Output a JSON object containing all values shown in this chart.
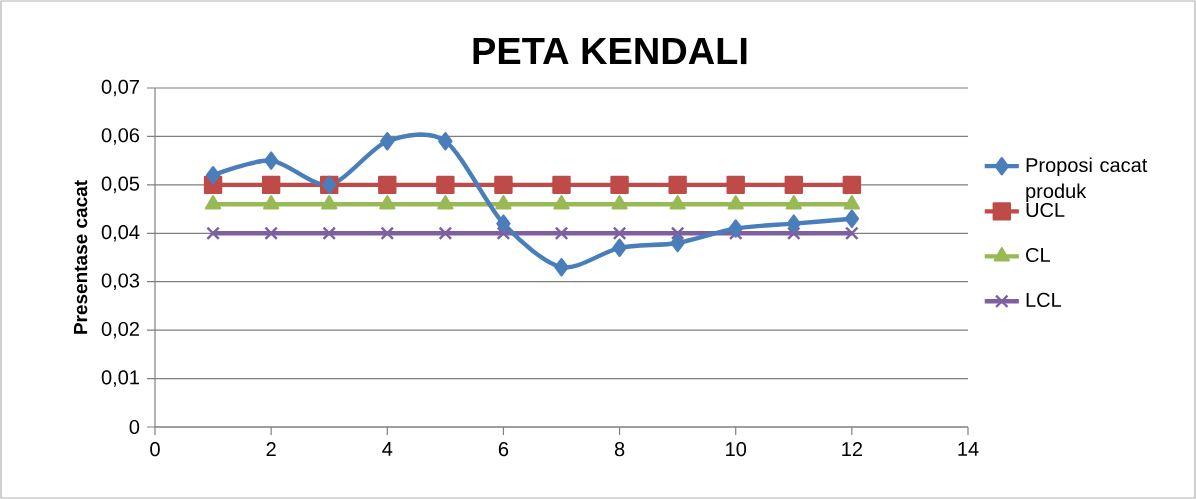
{
  "chart_data": {
    "type": "line",
    "title": "PETA KENDALI",
    "ylabel": "Presentase cacat",
    "x": [
      1,
      2,
      3,
      4,
      5,
      6,
      7,
      8,
      9,
      10,
      11,
      12
    ],
    "series": [
      {
        "name": "Proposi cacat produk",
        "color": "#4a7ebb",
        "marker": "diamond",
        "values": [
          0.052,
          0.055,
          0.05,
          0.059,
          0.059,
          0.042,
          0.033,
          0.037,
          0.038,
          0.041,
          0.042,
          0.043
        ]
      },
      {
        "name": "UCL",
        "color": "#be4b48",
        "marker": "square",
        "values": [
          0.05,
          0.05,
          0.05,
          0.05,
          0.05,
          0.05,
          0.05,
          0.05,
          0.05,
          0.05,
          0.05,
          0.05
        ]
      },
      {
        "name": "CL",
        "color": "#98b954",
        "marker": "triangle",
        "values": [
          0.046,
          0.046,
          0.046,
          0.046,
          0.046,
          0.046,
          0.046,
          0.046,
          0.046,
          0.046,
          0.046,
          0.046
        ]
      },
      {
        "name": "LCL",
        "color": "#7d60a0",
        "marker": "cross",
        "values": [
          0.04,
          0.04,
          0.04,
          0.04,
          0.04,
          0.04,
          0.04,
          0.04,
          0.04,
          0.04,
          0.04,
          0.04
        ]
      }
    ],
    "xlim": [
      0,
      14
    ],
    "xticks": [
      0,
      2,
      4,
      6,
      8,
      10,
      12,
      14
    ],
    "ylim": [
      0,
      0.07
    ],
    "yticks": [
      {
        "value": 0,
        "label": "0"
      },
      {
        "value": 0.01,
        "label": "0,01"
      },
      {
        "value": 0.02,
        "label": "0,02"
      },
      {
        "value": 0.03,
        "label": "0,03"
      },
      {
        "value": 0.04,
        "label": "0,04"
      },
      {
        "value": 0.05,
        "label": "0,05"
      },
      {
        "value": 0.06,
        "label": "0,06"
      },
      {
        "value": 0.07,
        "label": "0,07"
      }
    ],
    "grid": "y",
    "legend": "right"
  }
}
